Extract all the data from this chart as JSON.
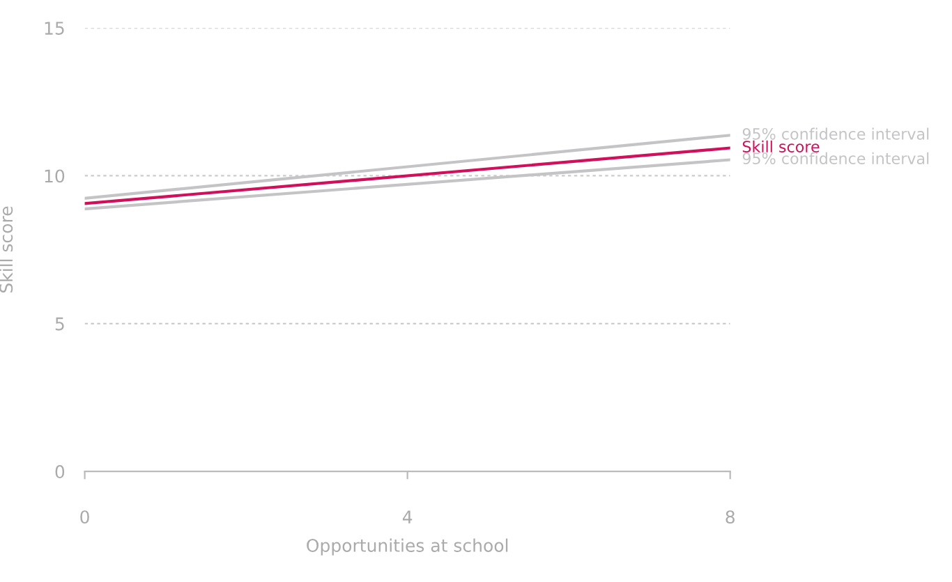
{
  "chart_data": {
    "type": "line",
    "xlabel": "Opportunities at school",
    "ylabel": "Skill score",
    "x": [
      0,
      8
    ],
    "xlim": [
      0,
      8
    ],
    "xticks": [
      0,
      4,
      8
    ],
    "ylim": [
      0,
      15
    ],
    "yticks": [
      0,
      5,
      10,
      15
    ],
    "grid": "y",
    "legend": false,
    "line_style": "solid",
    "marker": "none",
    "series": [
      {
        "name": "95% confidence interval",
        "color": "#c4c4c6",
        "values": [
          9.24,
          11.37
        ]
      },
      {
        "name": "Skill score",
        "color": "#d1105c",
        "values": [
          9.06,
          10.94
        ]
      },
      {
        "name": "95% confidence interval",
        "color": "#c4c4c6",
        "values": [
          8.88,
          10.54
        ]
      }
    ]
  }
}
